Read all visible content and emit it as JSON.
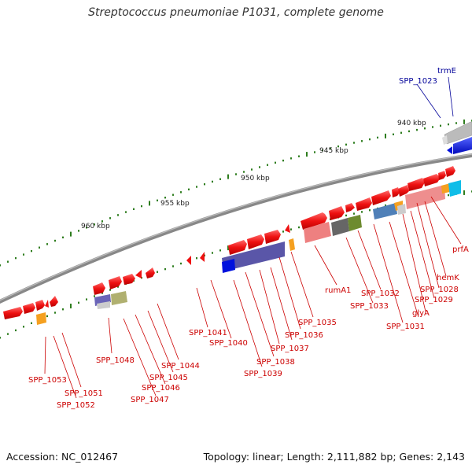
{
  "title": "Streptococcus pneumoniae P1031, complete genome",
  "footer": {
    "accession": "Accession: NC_012467",
    "topology": "Topology: linear; Length: 2,111,882 bp; Genes: 2,143"
  },
  "scale_labels": [
    "940 kbp",
    "945 kbp",
    "950 kbp",
    "955 kbp",
    "960 kbp"
  ],
  "gene_labels": {
    "trmE": "trmE",
    "spp1023": "SPP_1023",
    "prfA": "prfA",
    "hemK": "hemK",
    "spp1028": "SPP_1028",
    "spp1029": "SPP_1029",
    "glyA": "glyA",
    "spp1031": "SPP_1031",
    "spp1032": "SPP_1032",
    "spp1033": "SPP_1033",
    "rumA1": "rumA1",
    "spp1035": "SPP_1035",
    "spp1036": "SPP_1036",
    "spp1037": "SPP_1037",
    "spp1038": "SPP_1038",
    "spp1039": "SPP_1039",
    "spp1040": "SPP_1040",
    "spp1041": "SPP_1041",
    "spp1044": "SPP_1044",
    "spp1045": "SPP_1045",
    "spp1046": "SPP_1046",
    "spp1047": "SPP_1047",
    "spp1048": "SPP_1048",
    "spp1051": "SPP_1051",
    "spp1052": "SPP_1052",
    "spp1053": "SPP_1053"
  },
  "colors": {
    "gene_red": "#ee1111",
    "rna_blue": "#0011dd",
    "backbone": "#888888",
    "label_red": "#cc0000",
    "label_blue": "#000099",
    "tick_green": "#2e7d1e"
  }
}
